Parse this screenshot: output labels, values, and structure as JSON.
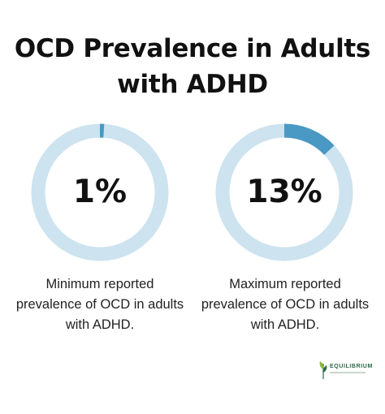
{
  "title": {
    "line1": "OCD Prevalence in Adults",
    "line2": "with ADHD"
  },
  "colors": {
    "track": "#cde3ef",
    "accent": "#4a98c4",
    "text": "#111111",
    "logo_green": "#2d6a45"
  },
  "chart_data": [
    {
      "type": "pie",
      "value_label": "1%",
      "values": [
        1,
        99
      ],
      "caption": "Minimum reported prevalence of OCD in adults with ADHD."
    },
    {
      "type": "pie",
      "value_label": "13%",
      "values": [
        13,
        87
      ],
      "caption": "Maximum reported prevalence of OCD in adults with ADHD."
    }
  ],
  "logo": {
    "text": "EQUILIBRIUM",
    "icon": "leaf-icon"
  }
}
